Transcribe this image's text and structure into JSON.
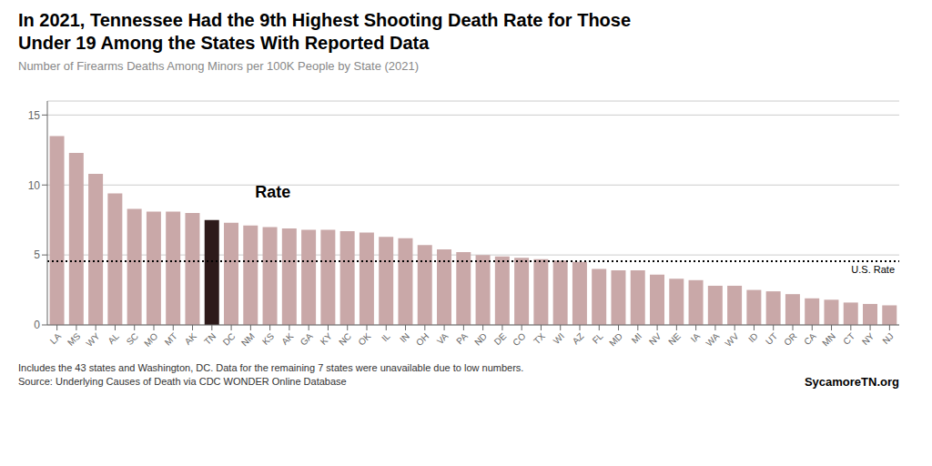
{
  "chart_data": {
    "type": "bar",
    "title": "In 2021, Tennessee Had the 9th Highest Shooting Death Rate for Those\nUnder 19 Among the States With Reported Data",
    "subtitle": "Number of Firearms Deaths Among Minors per 100K People by State (2021)",
    "categories": [
      "LA",
      "MS",
      "WY",
      "AL",
      "SC",
      "MO",
      "MT",
      "AK",
      "TN",
      "DC",
      "NM",
      "KS",
      "AK",
      "GA",
      "KY",
      "NC",
      "OK",
      "IL",
      "IN",
      "OH",
      "VA",
      "PA",
      "ND",
      "DE",
      "CO",
      "TX",
      "WI",
      "AZ",
      "FL",
      "MD",
      "MI",
      "NV",
      "NE",
      "IA",
      "WA",
      "WV",
      "ID",
      "UT",
      "OR",
      "CA",
      "MN",
      "CT",
      "NY",
      "NJ"
    ],
    "values": [
      13.5,
      12.3,
      10.8,
      9.4,
      8.3,
      8.1,
      8.1,
      8.0,
      7.5,
      7.3,
      7.1,
      7.0,
      6.9,
      6.8,
      6.8,
      6.7,
      6.6,
      6.3,
      6.2,
      5.7,
      5.4,
      5.2,
      5.0,
      4.9,
      4.8,
      4.7,
      4.6,
      4.5,
      4.0,
      3.9,
      3.9,
      3.6,
      3.3,
      3.2,
      2.8,
      2.8,
      2.5,
      2.4,
      2.2,
      1.9,
      1.8,
      1.6,
      1.5,
      1.4
    ],
    "colors": [
      "#c9a8a8",
      "#c9a8a8",
      "#c9a8a8",
      "#c9a8a8",
      "#c9a8a8",
      "#c9a8a8",
      "#c9a8a8",
      "#c9a8a8",
      "#2d1a1a",
      "#c9a8a8",
      "#c9a8a8",
      "#c9a8a8",
      "#c9a8a8",
      "#c9a8a8",
      "#c9a8a8",
      "#c9a8a8",
      "#c9a8a8",
      "#c9a8a8",
      "#c9a8a8",
      "#c9a8a8",
      "#c9a8a8",
      "#c9a8a8",
      "#c9a8a8",
      "#c9a8a8",
      "#c9a8a8",
      "#c9a8a8",
      "#c9a8a8",
      "#c9a8a8",
      "#c9a8a8",
      "#c9a8a8",
      "#c9a8a8",
      "#c9a8a8",
      "#c9a8a8",
      "#c9a8a8",
      "#c9a8a8",
      "#c9a8a8",
      "#c9a8a8",
      "#c9a8a8",
      "#c9a8a8",
      "#c9a8a8",
      "#c9a8a8",
      "#c9a8a8",
      "#c9a8a8",
      "#c9a8a8"
    ],
    "ylim": [
      0,
      16
    ],
    "yticks": [
      0,
      5,
      10,
      15
    ],
    "grid": true,
    "reference_line": {
      "value": 4.55,
      "label": "U.S. Rate",
      "line_style": "dotted"
    },
    "annotations": [
      {
        "text": "Rate",
        "x": 10,
        "y": 9.5
      }
    ],
    "footnotes": [
      "Includes the 43 states and Washington, DC. Data for the remaining 7 states were unavailable due to low numbers.",
      "Source: Underlying Causes of Death via CDC WONDER Online Database"
    ],
    "source": "SycamoreTN.org"
  }
}
